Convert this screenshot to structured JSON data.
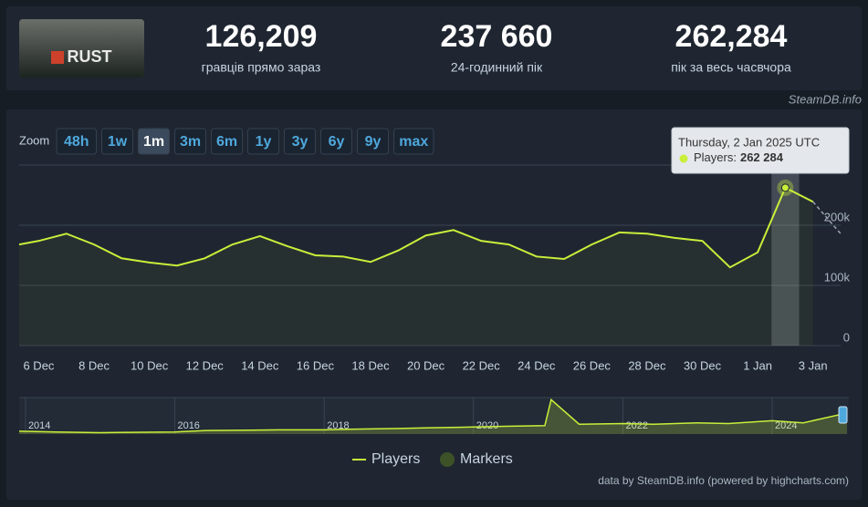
{
  "header": {
    "logo": "RUST",
    "stats": [
      {
        "value": "126,209",
        "label": "гравців прямо зараз"
      },
      {
        "value": "237 660",
        "label": "24-годинний пік"
      },
      {
        "value": "262,284",
        "label": "пік за весь часвчора"
      }
    ],
    "brand": "SteamDB.info"
  },
  "zoom": {
    "label": "Zoom",
    "buttons": [
      "48h",
      "1w",
      "1m",
      "3m",
      "6m",
      "1y",
      "3y",
      "6y",
      "9y",
      "max"
    ],
    "active": "1m"
  },
  "chart_data": {
    "type": "line",
    "x": [
      "2024-12-05T07:00:00Z",
      "2024-12-06",
      "2024-12-07",
      "2024-12-08",
      "2024-12-09",
      "2024-12-10",
      "2024-12-11",
      "2024-12-12",
      "2024-12-13",
      "2024-12-14",
      "2024-12-15",
      "2024-12-16",
      "2024-12-17",
      "2024-12-18",
      "2024-12-19",
      "2024-12-20",
      "2024-12-21",
      "2024-12-22",
      "2024-12-23",
      "2024-12-24",
      "2024-12-25",
      "2024-12-26",
      "2024-12-27",
      "2024-12-28",
      "2024-12-29",
      "2024-12-30",
      "2024-12-31",
      "2025-01-01",
      "2025-01-02",
      "2025-01-03",
      "2025-01-04"
    ],
    "series": [
      {
        "name": "Players",
        "color": "#c9ef3a",
        "values": [
          168000,
          174000,
          186000,
          168000,
          145000,
          138000,
          133000,
          145000,
          168000,
          182000,
          165000,
          150000,
          148000,
          139000,
          158000,
          183000,
          192000,
          174000,
          168000,
          148000,
          144000,
          168000,
          188000,
          186000,
          179000,
          174000,
          130000,
          155000,
          262284,
          239000,
          186000
        ]
      }
    ],
    "dashed_last": true,
    "markers_legend": {
      "name": "Markers",
      "color": "#3d5227"
    },
    "xlim": [
      "2024-12-05T07:00:00Z",
      "2025-01-04T00:00:00Z"
    ],
    "xticks": [
      {
        "value": "2024-12-06",
        "label": "6 Dec"
      },
      {
        "value": "2024-12-08",
        "label": "8 Dec"
      },
      {
        "value": "2024-12-10",
        "label": "10 Dec"
      },
      {
        "value": "2024-12-12",
        "label": "12 Dec"
      },
      {
        "value": "2024-12-14",
        "label": "14 Dec"
      },
      {
        "value": "2024-12-16",
        "label": "16 Dec"
      },
      {
        "value": "2024-12-18",
        "label": "18 Dec"
      },
      {
        "value": "2024-12-20",
        "label": "20 Dec"
      },
      {
        "value": "2024-12-22",
        "label": "22 Dec"
      },
      {
        "value": "2024-12-24",
        "label": "24 Dec"
      },
      {
        "value": "2024-12-26",
        "label": "26 Dec"
      },
      {
        "value": "2024-12-28",
        "label": "28 Dec"
      },
      {
        "value": "2024-12-30",
        "label": "30 Dec"
      },
      {
        "value": "2025-01-01",
        "label": "1 Jan"
      },
      {
        "value": "2025-01-03",
        "label": "3 Jan"
      }
    ],
    "ylim": [
      0,
      300000
    ],
    "yticks": [
      0,
      {
        "value": 100000,
        "label": "100k"
      },
      {
        "value": 200000,
        "label": "200k"
      }
    ],
    "grid": true,
    "tooltip": {
      "title": "Thursday, 2 Jan 2025 UTC",
      "series_label": "Players:",
      "index": 28,
      "value_label": "262 284"
    },
    "navigator": {
      "x": [
        "2013-12-01",
        "2014-06-01",
        "2015-01-01",
        "2015-06-01",
        "2016-01-01",
        "2016-06-01",
        "2017-01-01",
        "2017-06-01",
        "2018-01-01",
        "2018-06-01",
        "2019-01-01",
        "2019-06-01",
        "2020-01-01",
        "2020-06-01",
        "2020-12-15",
        "2021-01-15",
        "2021-06-01",
        "2022-01-01",
        "2022-06-01",
        "2023-01-01",
        "2023-06-01",
        "2024-01-01",
        "2024-06-01",
        "2025-01-01"
      ],
      "values": [
        20000,
        15000,
        10000,
        12000,
        15000,
        25000,
        28000,
        30000,
        30000,
        35000,
        40000,
        45000,
        50000,
        55000,
        60000,
        245000,
        70000,
        75000,
        70000,
        80000,
        75000,
        95000,
        80000,
        150000
      ],
      "xlim": [
        "2013-12-01",
        "2025-01-10"
      ],
      "ylim": [
        0,
        260000
      ],
      "xticks": [
        {
          "value": "2014-01-01",
          "label": "2014"
        },
        {
          "value": "2016-01-01",
          "label": "2016"
        },
        {
          "value": "2018-01-01",
          "label": "2018"
        },
        {
          "value": "2020-01-01",
          "label": "2020"
        },
        {
          "value": "2022-01-01",
          "label": "2022"
        },
        {
          "value": "2024-01-01",
          "label": "2024"
        }
      ]
    },
    "credits": "data by SteamDB.info (powered by highcharts.com)"
  }
}
